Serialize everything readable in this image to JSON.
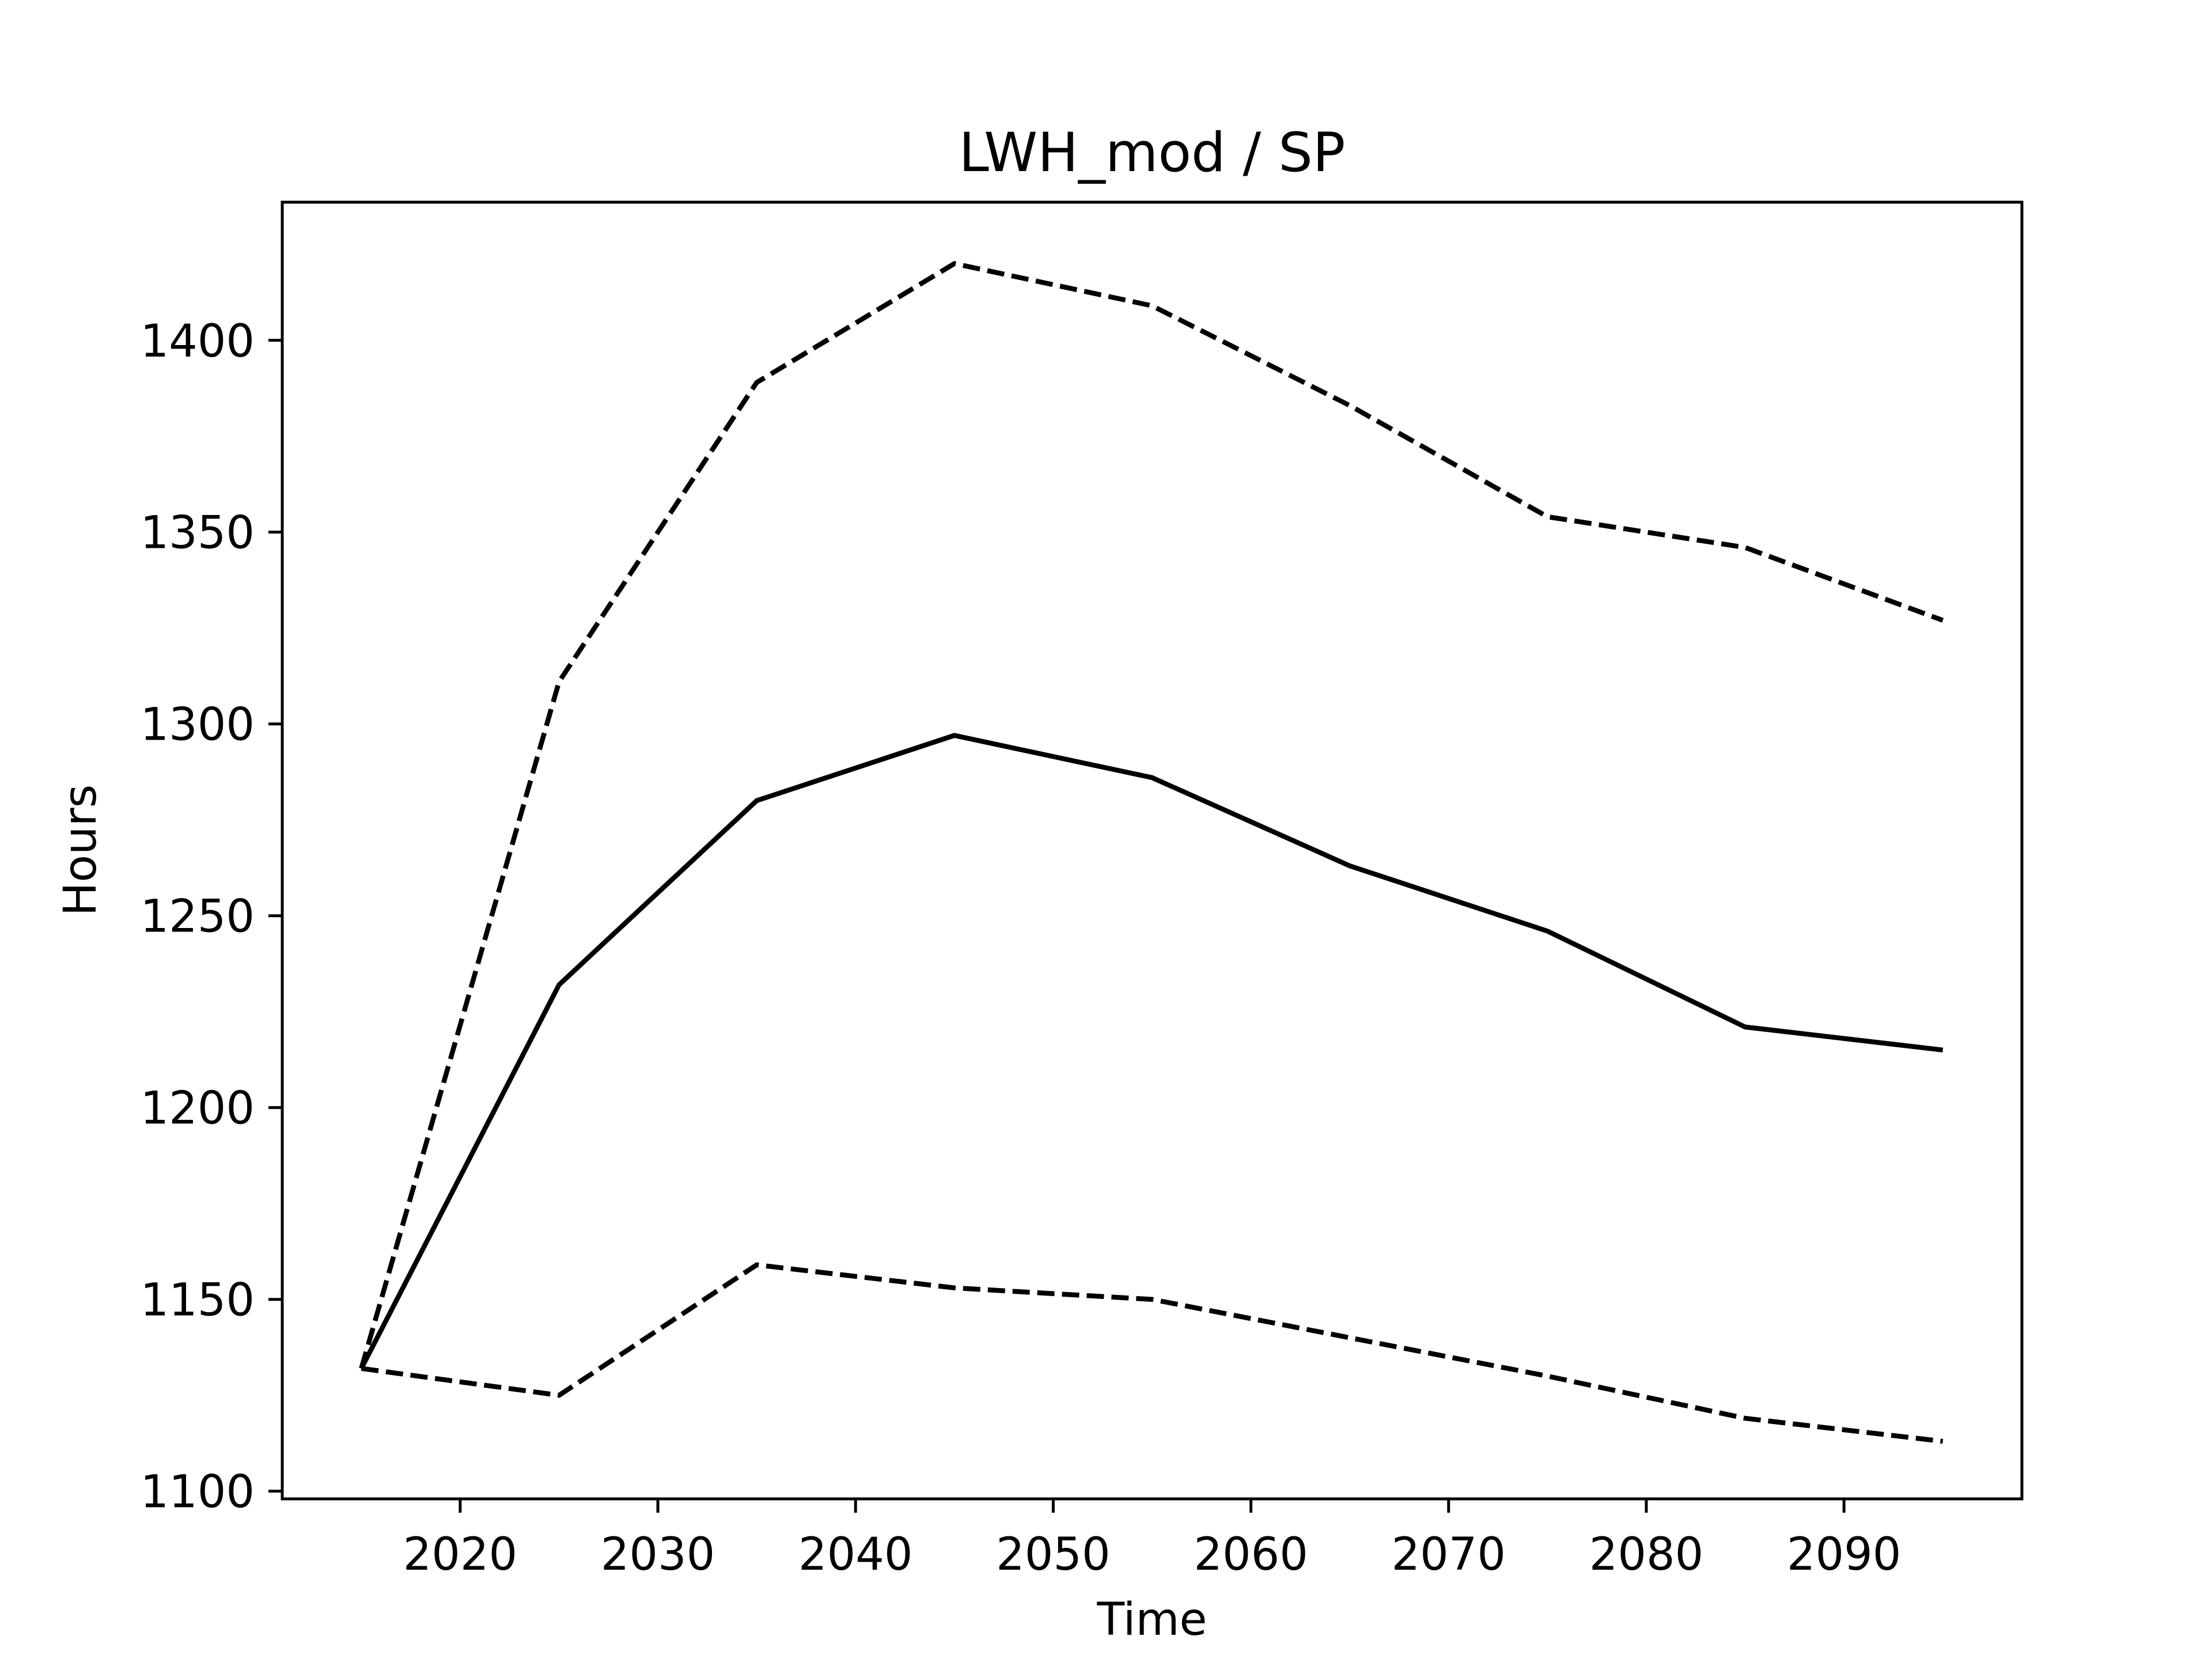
{
  "chart_data": {
    "type": "line",
    "title": "LWH_mod / SP",
    "xlabel": "Time",
    "ylabel": "Hours",
    "xlim": [
      2011,
      2099
    ],
    "ylim": [
      1098,
      1436
    ],
    "xticks": [
      2020,
      2030,
      2040,
      2050,
      2060,
      2070,
      2080,
      2090
    ],
    "yticks": [
      1100,
      1150,
      1200,
      1250,
      1300,
      1350,
      1400
    ],
    "grid": false,
    "legend": "none",
    "x": [
      2015,
      2025,
      2035,
      2045,
      2055,
      2065,
      2075,
      2085,
      2095
    ],
    "series": [
      {
        "style": "solid",
        "color": "#000000",
        "values": [
          1132,
          1232,
          1280,
          1297,
          1286,
          1263,
          1246,
          1221,
          1215
        ]
      },
      {
        "style": "dashed",
        "color": "#000000",
        "values": [
          1132,
          1311,
          1389,
          1420,
          1409,
          1383,
          1354,
          1346,
          1327
        ]
      },
      {
        "style": "dashed",
        "color": "#000000",
        "values": [
          1132,
          1125,
          1159,
          1153,
          1150,
          1140,
          1130,
          1119,
          1113
        ]
      }
    ]
  }
}
